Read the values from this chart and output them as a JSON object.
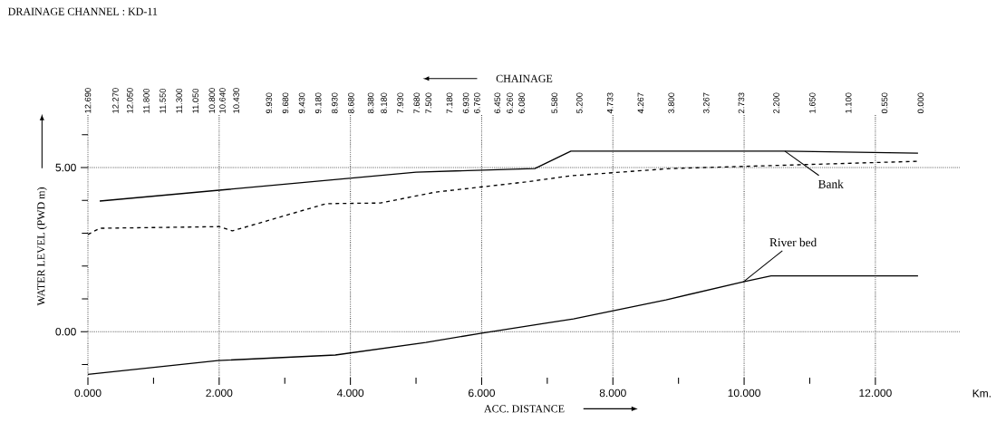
{
  "chart_data": {
    "type": "line",
    "title": "DRAINAGE CHANNEL : KD-11",
    "xlabel": "ACC. DISTANCE",
    "ylabel": "WATER LEVEL (PWD m)",
    "x2label": "CHAINAGE",
    "xlim": [
      0,
      13.3
    ],
    "ylim": [
      -1.4,
      6.6
    ],
    "xticks": [
      {
        "value": 0,
        "label": "0.000"
      },
      {
        "value": 1,
        "label": null
      },
      {
        "value": 2,
        "label": "2.000"
      },
      {
        "value": 3,
        "label": null
      },
      {
        "value": 4,
        "label": "4.000"
      },
      {
        "value": 5,
        "label": null
      },
      {
        "value": 6,
        "label": "6.000"
      },
      {
        "value": 7,
        "label": null
      },
      {
        "value": 8,
        "label": "8.000"
      },
      {
        "value": 9,
        "label": null
      },
      {
        "value": 10,
        "label": "10.000"
      },
      {
        "value": 11,
        "label": null
      },
      {
        "value": 12,
        "label": "12.000"
      }
    ],
    "yticks": [
      {
        "value": -1,
        "label": null
      },
      {
        "value": 0,
        "label": "0.00"
      },
      {
        "value": 1,
        "label": null
      },
      {
        "value": 2,
        "label": null
      },
      {
        "value": 3,
        "label": null
      },
      {
        "value": 4,
        "label": null
      },
      {
        "value": 5,
        "label": "5.00"
      },
      {
        "value": 6,
        "label": null
      }
    ],
    "x2lim": [
      12.69,
      -0.61
    ],
    "x2ticks": [
      {
        "value": 12.69,
        "label": "12.690"
      },
      {
        "value": 12.27,
        "label": "12.270"
      },
      {
        "value": 12.05,
        "label": "12.050"
      },
      {
        "value": 11.8,
        "label": "11.800"
      },
      {
        "value": 11.55,
        "label": "11.550"
      },
      {
        "value": 11.3,
        "label": "11.300"
      },
      {
        "value": 11.05,
        "label": "11.050"
      },
      {
        "value": 10.8,
        "label": "10.800"
      },
      {
        "value": 10.64,
        "label": "10.640"
      },
      {
        "value": 10.43,
        "label": "10.430"
      },
      {
        "value": 9.93,
        "label": "9.930"
      },
      {
        "value": 9.68,
        "label": "9.680"
      },
      {
        "value": 9.43,
        "label": "9.430"
      },
      {
        "value": 9.18,
        "label": "9.180"
      },
      {
        "value": 8.93,
        "label": "8.930"
      },
      {
        "value": 8.68,
        "label": "8.680"
      },
      {
        "value": 8.38,
        "label": "8.380"
      },
      {
        "value": 8.18,
        "label": "8.180"
      },
      {
        "value": 7.93,
        "label": "7.930"
      },
      {
        "value": 7.68,
        "label": "7.680"
      },
      {
        "value": 7.5,
        "label": "7.500"
      },
      {
        "value": 7.18,
        "label": "7.180"
      },
      {
        "value": 6.93,
        "label": "6.930"
      },
      {
        "value": 6.76,
        "label": "6.760"
      },
      {
        "value": 6.45,
        "label": "6.450"
      },
      {
        "value": 6.26,
        "label": "6.260"
      },
      {
        "value": 6.08,
        "label": "6.080"
      },
      {
        "value": 5.58,
        "label": "5.580"
      },
      {
        "value": 5.2,
        "label": "5.200"
      },
      {
        "value": 4.733,
        "label": "4.733"
      },
      {
        "value": 4.267,
        "label": "4.267"
      },
      {
        "value": 3.8,
        "label": "3.800"
      },
      {
        "value": 3.267,
        "label": "3.267"
      },
      {
        "value": 2.733,
        "label": "2.733"
      },
      {
        "value": 2.2,
        "label": "2.200"
      },
      {
        "value": 1.65,
        "label": "1.650"
      },
      {
        "value": 1.1,
        "label": "1.100"
      },
      {
        "value": 0.55,
        "label": "0.550"
      },
      {
        "value": 0,
        "label": "0.000"
      }
    ],
    "grid": true,
    "series": [
      {
        "name": "Bank",
        "color": "#000000",
        "line_style": "solid",
        "x": [
          0.18,
          2.0,
          5.0,
          6.81,
          7.36,
          10.62,
          12.65
        ],
        "values": [
          3.98,
          4.31,
          4.86,
          4.97,
          5.5,
          5.5,
          5.44
        ]
      },
      {
        "color": "#000000",
        "line_style": "dashed",
        "x": [
          0,
          0.18,
          2.0,
          2.2,
          3.63,
          4.46,
          5.29,
          6.67,
          7.36,
          8.88,
          12.65
        ],
        "values": [
          2.96,
          3.15,
          3.2,
          3.07,
          3.9,
          3.92,
          4.25,
          4.56,
          4.75,
          4.97,
          5.19
        ]
      },
      {
        "name": "River bed",
        "color": "#000000",
        "line_style": "solid",
        "x": [
          0,
          1.98,
          3.77,
          5.15,
          5.98,
          6.95,
          7.4,
          8.81,
          9.99,
          10.41,
          12.65
        ],
        "values": [
          -1.3,
          -0.88,
          -0.71,
          -0.33,
          -0.05,
          0.25,
          0.39,
          0.97,
          1.52,
          1.7,
          1.7
        ]
      }
    ],
    "annotations": [
      "Km."
    ]
  }
}
